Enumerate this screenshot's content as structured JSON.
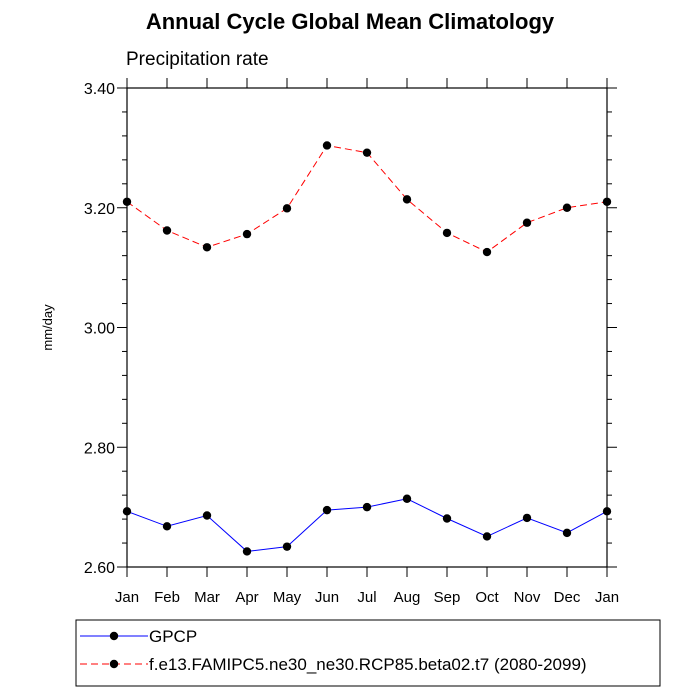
{
  "chart_data": {
    "type": "line",
    "title": "Annual Cycle Global Mean Climatology",
    "subtitle": "Precipitation rate",
    "xlabel": "",
    "ylabel": "mm/day",
    "categories": [
      "Jan",
      "Feb",
      "Mar",
      "Apr",
      "May",
      "Jun",
      "Jul",
      "Aug",
      "Sep",
      "Oct",
      "Nov",
      "Dec",
      "Jan"
    ],
    "ylim": [
      2.6,
      3.4
    ],
    "yticks": [
      "2.60",
      "2.80",
      "3.00",
      "3.20",
      "3.40"
    ],
    "grid": false,
    "legend_position": "bottom",
    "series": [
      {
        "name": "GPCP",
        "color": "#0000ff",
        "dash": "solid",
        "values": [
          2.693,
          2.668,
          2.686,
          2.626,
          2.634,
          2.695,
          2.7,
          2.714,
          2.681,
          2.651,
          2.682,
          2.657,
          2.693
        ]
      },
      {
        "name": "f.e13.FAMIPC5.ne30_ne30.RCP85.beta02.t7 (2080-2099)",
        "color": "#ff0000",
        "dash": "dashed",
        "values": [
          3.21,
          3.162,
          3.134,
          3.156,
          3.199,
          3.304,
          3.292,
          3.214,
          3.158,
          3.126,
          3.175,
          3.2,
          3.21
        ]
      }
    ]
  }
}
